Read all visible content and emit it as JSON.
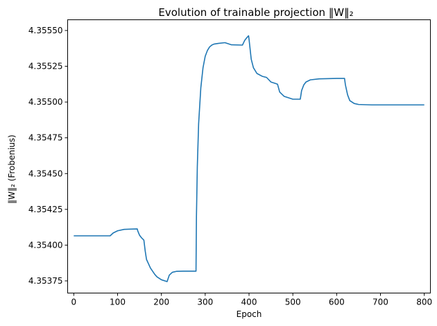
{
  "chart_data": {
    "type": "line",
    "title": "Evolution of trainable projection ‖W‖₂",
    "xlabel": "Epoch",
    "ylabel": "‖W‖₂ (Frobenius)",
    "xlim": [
      -14,
      814
    ],
    "ylim": [
      4.353665,
      4.355575
    ],
    "xticks": [
      0,
      100,
      200,
      300,
      400,
      500,
      600,
      700,
      800
    ],
    "xtick_labels": [
      "0",
      "100",
      "200",
      "300",
      "400",
      "500",
      "600",
      "700",
      "800"
    ],
    "yticks": [
      4.35375,
      4.354,
      4.35425,
      4.3545,
      4.35475,
      4.355,
      4.35525,
      4.3555
    ],
    "ytick_labels": [
      "4.35375",
      "4.35400",
      "4.35425",
      "4.35450",
      "4.35475",
      "4.35500",
      "4.35525",
      "4.35550"
    ],
    "grid": false,
    "legend": "none",
    "line_color": "#1f77b4",
    "series": [
      {
        "values_x": [
          0,
          40,
          83,
          90,
          100,
          115,
          130,
          145,
          146,
          150,
          155,
          160,
          163,
          166,
          175,
          185,
          190,
          200,
          210,
          213,
          218,
          225,
          235,
          250,
          270,
          279,
          280,
          282,
          285,
          290,
          295,
          300,
          305,
          310,
          315,
          320,
          330,
          345,
          360,
          385,
          390,
          395,
          399,
          400,
          405,
          410,
          418,
          430,
          440,
          450,
          460,
          465,
          470,
          480,
          500,
          517,
          520,
          525,
          530,
          540,
          560,
          600,
          618,
          620,
          625,
          630,
          640,
          650,
          680,
          800
        ],
        "values_y": [
          4.354065,
          4.354065,
          4.354065,
          4.354085,
          4.3541,
          4.35411,
          4.354112,
          4.354113,
          4.3541,
          4.35407,
          4.35405,
          4.354035,
          4.35396,
          4.3539,
          4.35384,
          4.353795,
          4.353778,
          4.353758,
          4.353748,
          4.353745,
          4.35379,
          4.35381,
          4.353817,
          4.353818,
          4.353818,
          4.353818,
          4.3542,
          4.35455,
          4.35485,
          4.3551,
          4.35524,
          4.35532,
          4.35536,
          4.355385,
          4.355398,
          4.355405,
          4.35541,
          4.355415,
          4.3554,
          4.355398,
          4.35543,
          4.35545,
          4.355463,
          4.35544,
          4.3553,
          4.35524,
          4.3552,
          4.35518,
          4.355172,
          4.35514,
          4.35513,
          4.355125,
          4.35507,
          4.35504,
          4.35502,
          4.35502,
          4.35508,
          4.35512,
          4.35514,
          4.355155,
          4.355162,
          4.355165,
          4.355165,
          4.35512,
          4.35505,
          4.35501,
          4.35499,
          4.354983,
          4.35498,
          4.35498
        ]
      }
    ]
  }
}
